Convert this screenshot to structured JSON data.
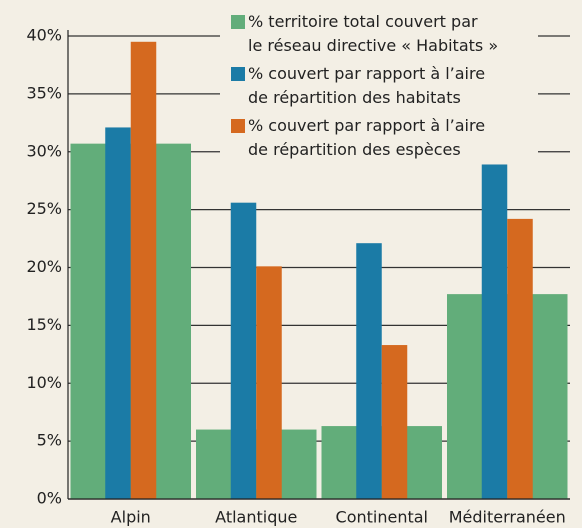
{
  "chart_data": {
    "type": "bar",
    "categories": [
      "Alpin",
      "Atlantique",
      "Continental",
      "Méditerranéen"
    ],
    "series": [
      {
        "name": "% territoire total couvert par le réseau directive « Habitats »",
        "color": "#62ad7a",
        "values": [
          30.7,
          6.0,
          6.3,
          17.7
        ]
      },
      {
        "name": "% couvert par rapport à l’aire de répartition des habitats",
        "color": "#1b7ba6",
        "values": [
          32.1,
          25.6,
          22.1,
          28.9
        ]
      },
      {
        "name": "% couvert par rapport à l’aire de répartition des espèces",
        "color": "#d5691f",
        "values": [
          39.5,
          20.1,
          13.3,
          24.2
        ]
      }
    ],
    "ylim": [
      0,
      40
    ],
    "yticks": [
      {
        "value": 0,
        "label": "0%"
      },
      {
        "value": 5,
        "label": "5%"
      },
      {
        "value": 10,
        "label": "10%"
      },
      {
        "value": 15,
        "label": "15%"
      },
      {
        "value": 20,
        "label": "20%"
      },
      {
        "value": 25,
        "label": "25%"
      },
      {
        "value": 30,
        "label": "30%"
      },
      {
        "value": 35,
        "label": "35%"
      },
      {
        "value": 40,
        "label": "40%"
      }
    ],
    "grid": true
  }
}
